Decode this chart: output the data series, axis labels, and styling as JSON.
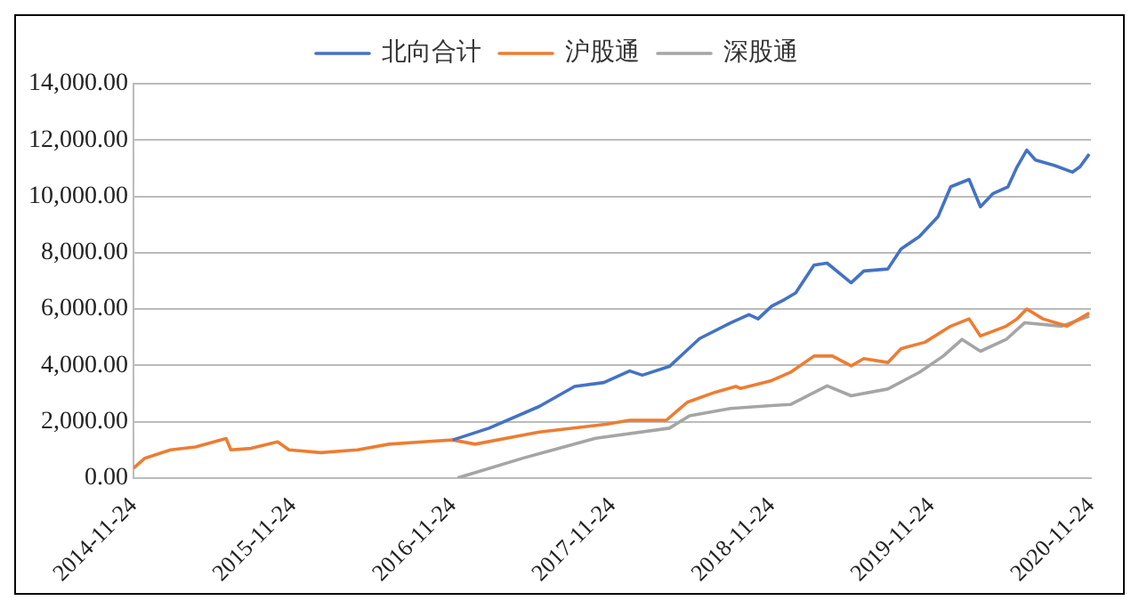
{
  "chart_data": {
    "type": "line",
    "xlim": [
      "2014-11-24",
      "2020-11-24"
    ],
    "xticks": [
      "2014-11-24",
      "2015-11-24",
      "2016-11-24",
      "2017-11-24",
      "2018-11-24",
      "2019-11-24",
      "2020-11-24"
    ],
    "ylim": [
      0,
      14000
    ],
    "yticks": [
      {
        "value": 0,
        "label": "0.00"
      },
      {
        "value": 2000,
        "label": "2,000.00"
      },
      {
        "value": 4000,
        "label": "4,000.00"
      },
      {
        "value": 6000,
        "label": "6,000.00"
      },
      {
        "value": 8000,
        "label": "8,000.00"
      },
      {
        "value": 10000,
        "label": "10,000.00"
      },
      {
        "value": 12000,
        "label": "12,000.00"
      },
      {
        "value": 14000,
        "label": "14,000.00"
      }
    ],
    "grid": "y",
    "legend": "top",
    "marker": "none",
    "line_style": "solid",
    "series": [
      {
        "name": "北向合计",
        "color": "#4472c4",
        "x": [
          "2016-11-24",
          "2017-02-15",
          "2017-06-10",
          "2017-08-30",
          "2017-11-05",
          "2018-01-03",
          "2018-02-01",
          "2018-04-04",
          "2018-06-12",
          "2018-08-22",
          "2018-10-03",
          "2018-10-24",
          "2018-11-24",
          "2018-12-24",
          "2019-01-18",
          "2019-03-01",
          "2019-03-31",
          "2019-05-25",
          "2019-06-23",
          "2019-08-17",
          "2019-09-16",
          "2019-10-28",
          "2019-12-10",
          "2020-01-08",
          "2020-02-19",
          "2020-03-16",
          "2020-04-14",
          "2020-05-18",
          "2020-06-08",
          "2020-06-30",
          "2020-07-20",
          "2020-09-01",
          "2020-10-13",
          "2020-10-30",
          "2020-11-20"
        ],
        "values": [
          1350,
          1770,
          2540,
          3250,
          3390,
          3800,
          3650,
          3960,
          4950,
          5510,
          5800,
          5650,
          6100,
          6340,
          6570,
          7560,
          7630,
          6930,
          7350,
          7420,
          8130,
          8570,
          9280,
          10340,
          10600,
          9630,
          10100,
          10340,
          11050,
          11640,
          11290,
          11100,
          10860,
          11050,
          11500
        ]
      },
      {
        "name": "沪股通",
        "color": "#ed7d31",
        "x": [
          "2014-11-24",
          "2014-12-20",
          "2015-02-17",
          "2015-04-15",
          "2015-06-24",
          "2015-07-05",
          "2015-08-20",
          "2015-10-20",
          "2015-11-15",
          "2016-01-27",
          "2016-04-20",
          "2016-07-01",
          "2016-10-01",
          "2016-11-24",
          "2017-01-14",
          "2017-06-10",
          "2017-11-10",
          "2018-01-03",
          "2018-03-28",
          "2018-05-15",
          "2018-07-17",
          "2018-09-03",
          "2018-09-14",
          "2018-11-24",
          "2019-01-06",
          "2019-03-01",
          "2019-04-12",
          "2019-05-25",
          "2019-06-23",
          "2019-08-17",
          "2019-09-16",
          "2019-11-10",
          "2020-01-08",
          "2020-02-19",
          "2020-03-16",
          "2020-05-14",
          "2020-06-08",
          "2020-06-30",
          "2020-08-06",
          "2020-09-30",
          "2020-11-20"
        ],
        "values": [
          350,
          700,
          1000,
          1100,
          1400,
          1000,
          1050,
          1280,
          1000,
          900,
          1000,
          1200,
          1300,
          1350,
          1200,
          1630,
          1910,
          2050,
          2050,
          2690,
          3040,
          3250,
          3180,
          3460,
          3750,
          4330,
          4330,
          3980,
          4240,
          4100,
          4590,
          4820,
          5390,
          5650,
          5040,
          5390,
          5650,
          6000,
          5650,
          5390,
          5860
        ]
      },
      {
        "name": "深股通",
        "color": "#a5a5a5",
        "x": [
          "2016-12-05",
          "2017-05-05",
          "2017-10-17",
          "2018-04-04",
          "2018-05-20",
          "2018-08-22",
          "2018-11-24",
          "2019-01-06",
          "2019-03-31",
          "2019-05-25",
          "2019-08-17",
          "2019-10-28",
          "2019-12-22",
          "2020-02-03",
          "2020-03-16",
          "2020-05-14",
          "2020-06-25",
          "2020-09-18",
          "2020-11-20"
        ],
        "values": [
          0,
          710,
          1410,
          1770,
          2210,
          2470,
          2570,
          2610,
          3270,
          2920,
          3160,
          3750,
          4330,
          4920,
          4500,
          4920,
          5510,
          5390,
          5750
        ]
      }
    ]
  }
}
